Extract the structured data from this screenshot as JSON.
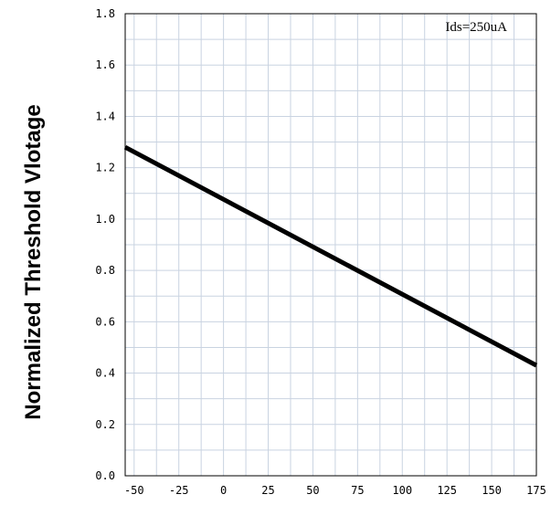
{
  "chart_data": {
    "type": "line",
    "title": "",
    "xlabel": "",
    "ylabel": "Normalized Threshold Vlotage",
    "annotation": "Ids=250uA",
    "xlim": [
      -55,
      175
    ],
    "ylim": [
      0,
      1.8
    ],
    "xticks": [
      "-50",
      "-25",
      "0",
      "25",
      "50",
      "75",
      "100",
      "125",
      "150",
      "175"
    ],
    "yticks": [
      "0.0",
      "0.2",
      "0.4",
      "0.6",
      "0.8",
      "1.0",
      "1.2",
      "1.4",
      "1.6",
      "1.8"
    ],
    "grid": true,
    "series": [
      {
        "x": [
          -55,
          175
        ],
        "y": [
          1.28,
          0.43
        ]
      }
    ],
    "colors": {
      "line": "#000000",
      "grid": "#c9d3e1",
      "frame": "#000000"
    }
  }
}
